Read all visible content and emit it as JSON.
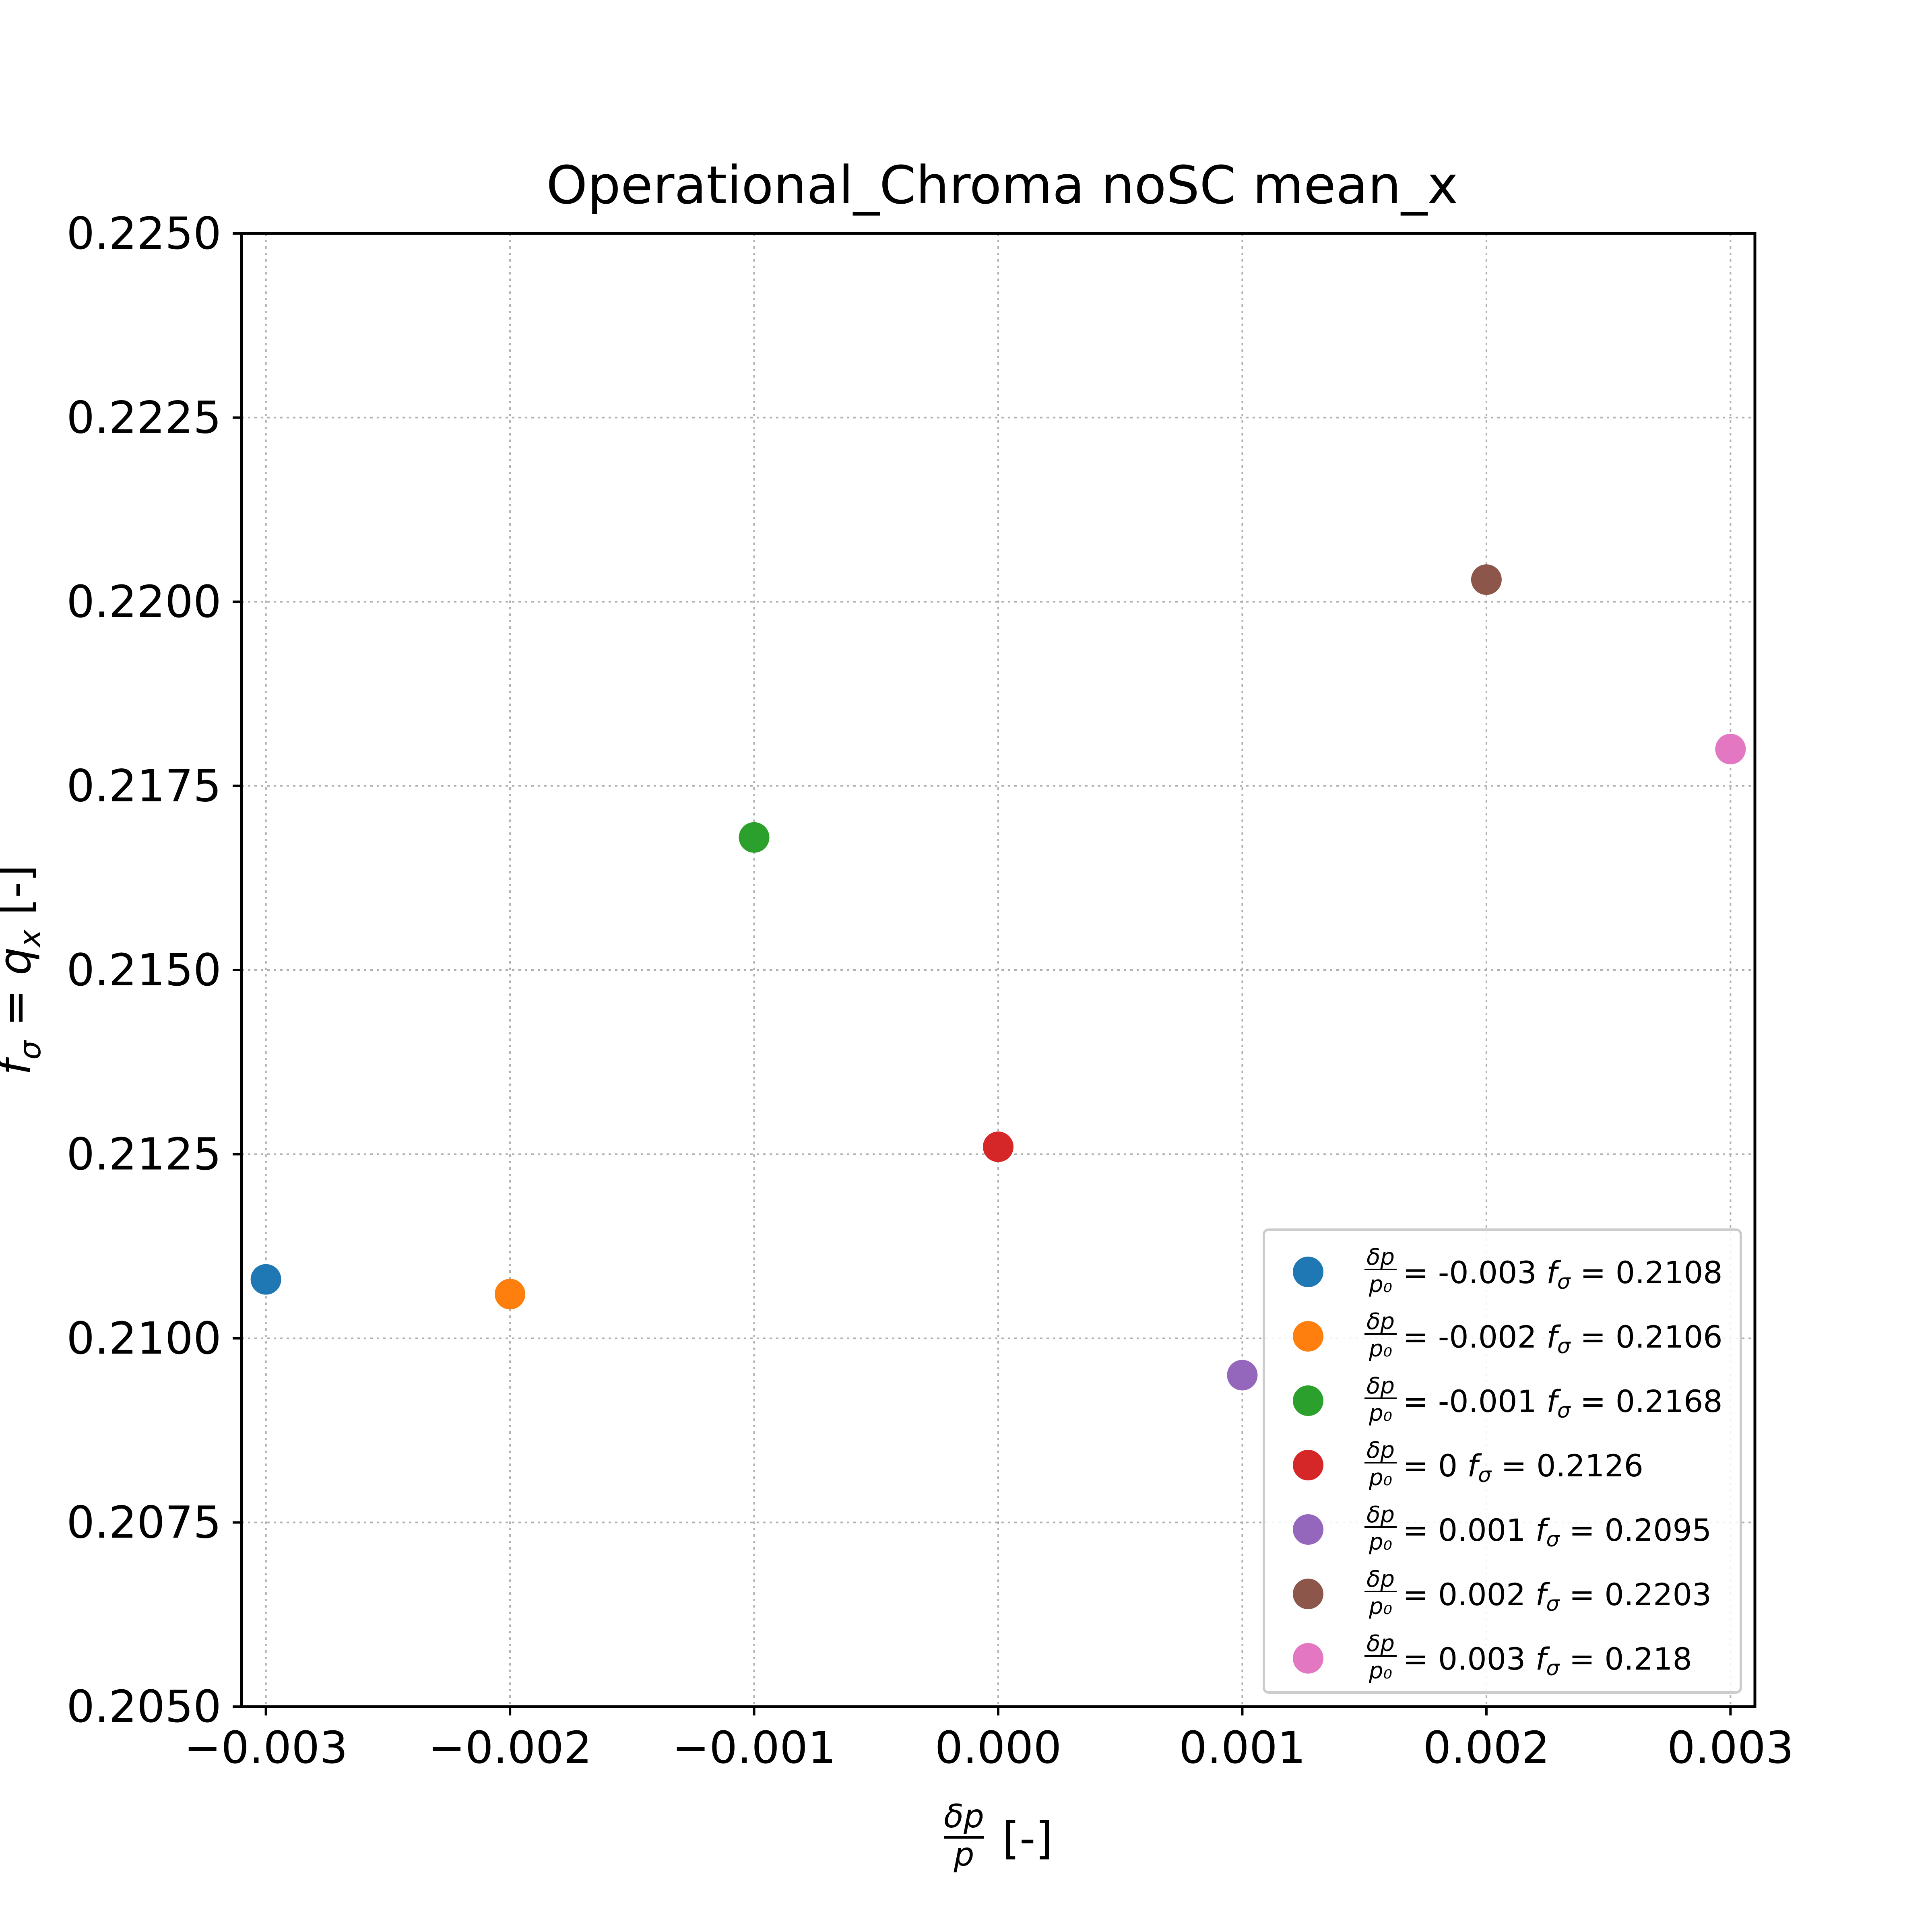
{
  "chart_data": {
    "type": "scatter",
    "title": "Operational_Chroma noSC mean_x",
    "xlabel_frac": {
      "num": "δp",
      "den": "p"
    },
    "xlabel_suffix": "[-]",
    "ylabel_prefix": "f",
    "ylabel_sub": "σ",
    "ylabel_mid": " = q",
    "ylabel_sub2": "x",
    "ylabel_suffix": " [-]",
    "xlim": [
      -0.0031,
      0.0031
    ],
    "ylim": [
      0.205,
      0.225
    ],
    "xticks": [
      -0.003,
      -0.002,
      -0.001,
      0.0,
      0.001,
      0.002,
      0.003
    ],
    "xtick_labels": [
      "−0.003",
      "−0.002",
      "−0.001",
      "0.000",
      "0.001",
      "0.002",
      "0.003"
    ],
    "yticks": [
      0.205,
      0.2075,
      0.21,
      0.2125,
      0.215,
      0.2175,
      0.22,
      0.2225,
      0.225
    ],
    "ytick_labels": [
      "0.2050",
      "0.2075",
      "0.2100",
      "0.2125",
      "0.2150",
      "0.2175",
      "0.2200",
      "0.2225",
      "0.2250"
    ],
    "grid": true,
    "legend_position": "lower-right",
    "series": [
      {
        "x": -0.003,
        "y": 0.2108,
        "color": "#1f77b4",
        "legend_value": "-0.003",
        "legend_f": "0.2108"
      },
      {
        "x": -0.002,
        "y": 0.2106,
        "color": "#ff7f0e",
        "legend_value": "-0.002",
        "legend_f": "0.2106"
      },
      {
        "x": -0.001,
        "y": 0.2168,
        "color": "#2ca02c",
        "legend_value": "-0.001",
        "legend_f": "0.2168"
      },
      {
        "x": 0.0,
        "y": 0.2126,
        "color": "#d62728",
        "legend_value": "0",
        "legend_f": "0.2126"
      },
      {
        "x": 0.001,
        "y": 0.2095,
        "color": "#9467bd",
        "legend_value": "0.001",
        "legend_f": "0.2095"
      },
      {
        "x": 0.002,
        "y": 0.2203,
        "color": "#8c564b",
        "legend_value": "0.002",
        "legend_f": "0.2203"
      },
      {
        "x": 0.003,
        "y": 0.218,
        "color": "#e377c2",
        "legend_value": "0.003",
        "legend_f": "0.218"
      }
    ],
    "legend_frac": {
      "num": "δp",
      "den": "p₀"
    },
    "legend_f_symbol": "f",
    "legend_f_sub": "σ"
  }
}
